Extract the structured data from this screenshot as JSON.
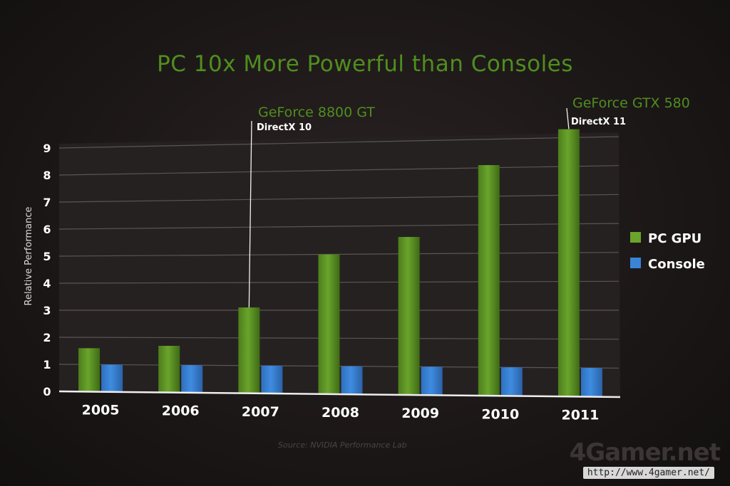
{
  "slide": {
    "title": "PC 10x More Powerful than Consoles",
    "source": "Source: NVIDIA Performance Lab",
    "watermark_logo": "4Gamer.net",
    "watermark_url": "http://www.4gamer.net/"
  },
  "colors": {
    "pc_gpu": "#6aa42c",
    "console": "#3a84d8",
    "title": "#4f8e1f",
    "axis_text": "#ffffff",
    "grid": "#5b5555"
  },
  "chart_data": {
    "type": "bar",
    "title": "PC 10x More Powerful than Consoles",
    "xlabel": "",
    "ylabel": "Relative Performance",
    "categories": [
      "2005",
      "2006",
      "2007",
      "2008",
      "2009",
      "2010",
      "2011"
    ],
    "series": [
      {
        "name": "PC GPU",
        "values": [
          1.6,
          1.7,
          3.1,
          5.0,
          5.6,
          8.1,
          9.3
        ]
      },
      {
        "name": "Console",
        "values": [
          1.0,
          1.0,
          1.0,
          1.0,
          1.0,
          1.0,
          1.0
        ]
      }
    ],
    "ylim": [
      0,
      9
    ],
    "yticks": [
      "0",
      "1",
      "2",
      "3",
      "4",
      "5",
      "6",
      "7",
      "8",
      "9"
    ],
    "grid": true,
    "legend_position": "right",
    "annotations": [
      {
        "category": "2007",
        "label": "GeForce 8800 GT",
        "sublabel": "DirectX 10"
      },
      {
        "category": "2011",
        "label": "GeForce GTX 580",
        "sublabel": "DirectX 11"
      }
    ]
  }
}
